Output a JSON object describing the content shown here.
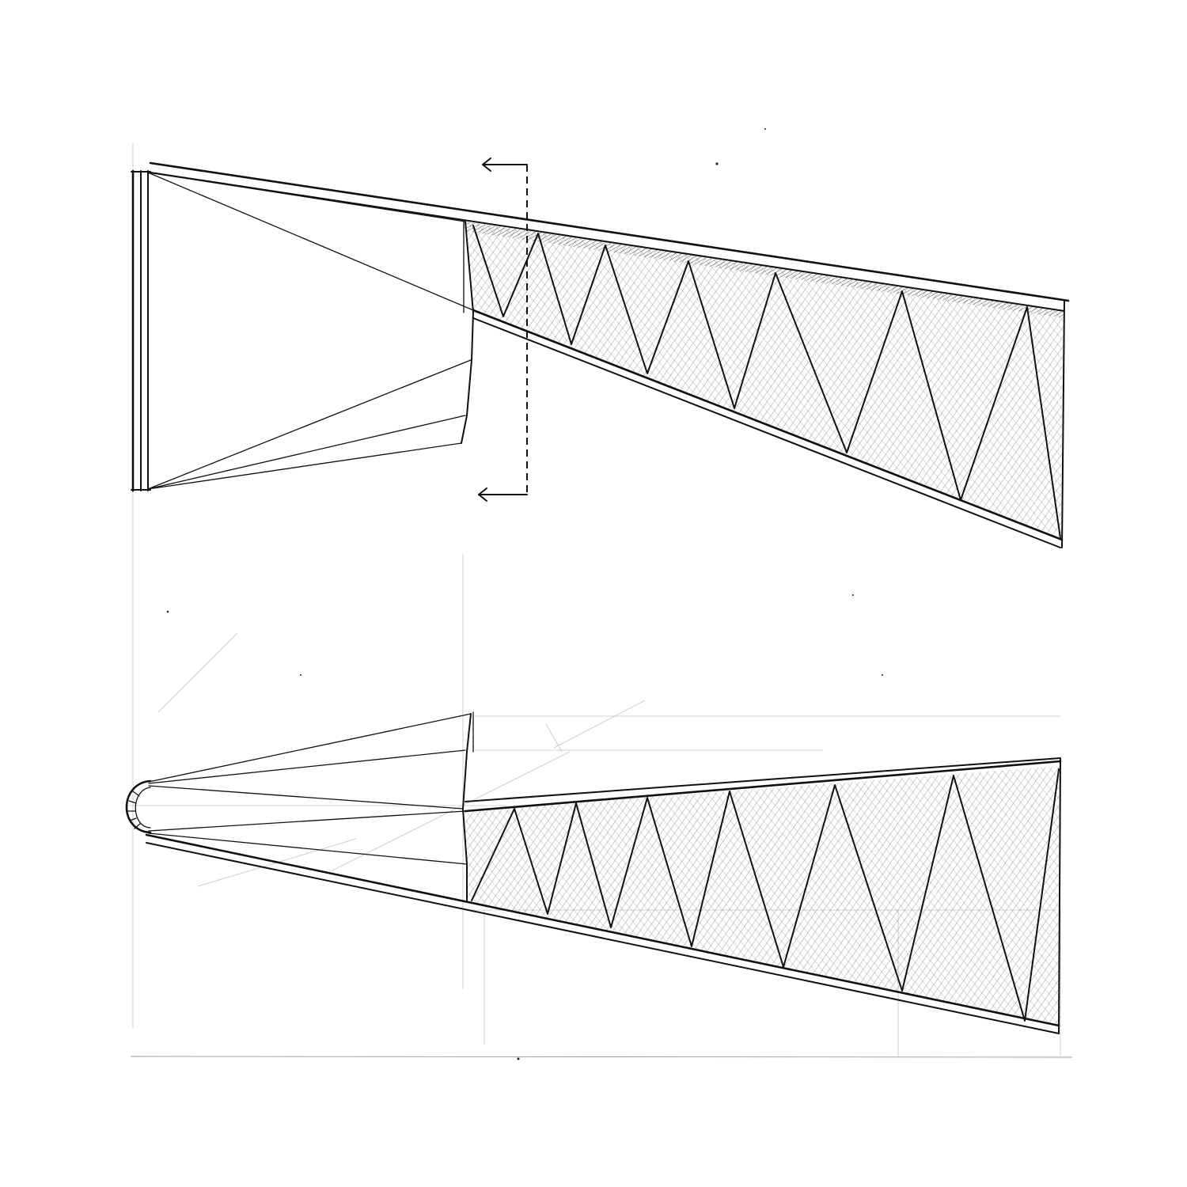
{
  "drawing": {
    "ink_color": "#111111",
    "paper_color": "#ffffff",
    "hatch_color": "#222222"
  }
}
